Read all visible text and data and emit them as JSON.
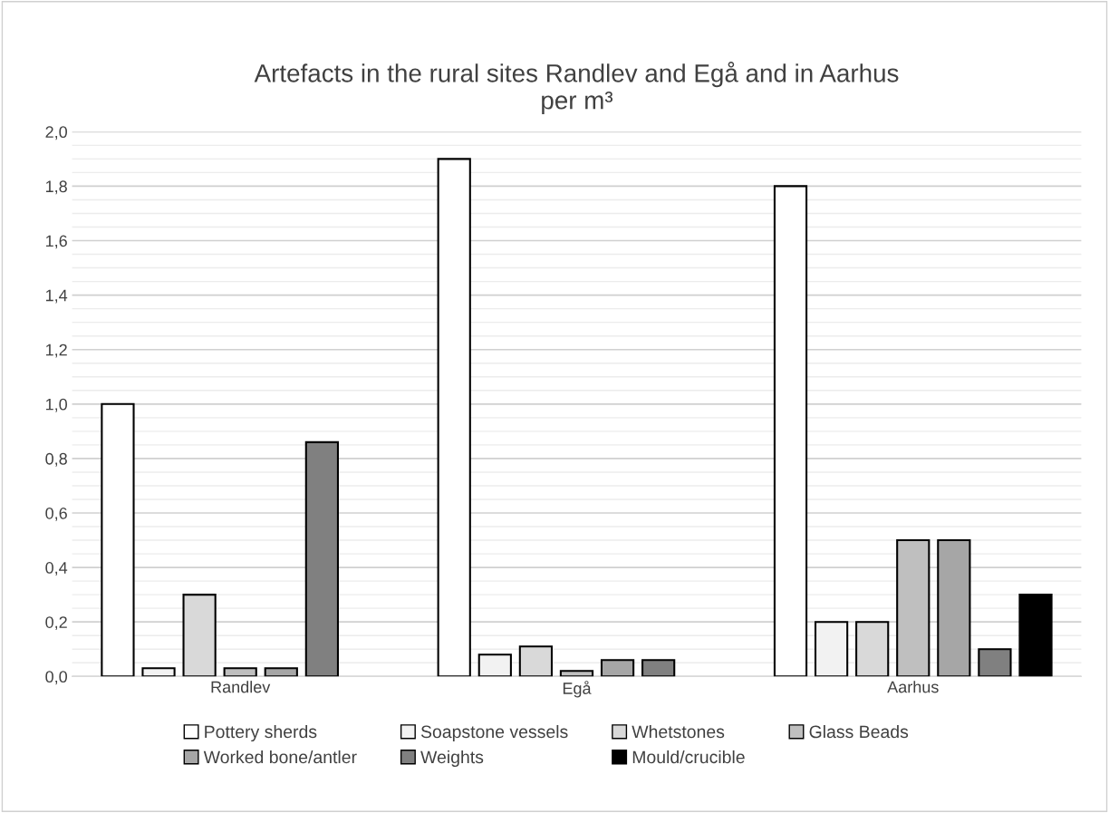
{
  "chart_data": {
    "type": "bar",
    "title": "Artefacts in the rural sites Randlev and Egå and in Aarhus\nper m³",
    "categories": [
      "Randlev",
      "Egå",
      "Aarhus"
    ],
    "series": [
      {
        "name": "Pottery sherds",
        "color": "#ffffff",
        "values": [
          1.0,
          1.9,
          1.8
        ]
      },
      {
        "name": "Soapstone vessels",
        "color": "#f2f2f2",
        "values": [
          0.03,
          0.08,
          0.2
        ]
      },
      {
        "name": "Whetstones",
        "color": "#d9d9d9",
        "values": [
          0.3,
          0.11,
          0.2
        ]
      },
      {
        "name": "Glass Beads",
        "color": "#bfbfbf",
        "values": [
          0.03,
          0.02,
          0.5
        ]
      },
      {
        "name": "Worked bone/antler",
        "color": "#a6a6a6",
        "values": [
          0.03,
          0.06,
          0.5
        ]
      },
      {
        "name": "Weights",
        "color": "#808080",
        "values": [
          0.86,
          0.06,
          0.1
        ]
      },
      {
        "name": "Mould/crucible",
        "color": "#000000",
        "values": [
          null,
          null,
          0.3
        ]
      }
    ],
    "ylim": [
      0,
      2.0
    ],
    "yticks": [
      {
        "value": 0,
        "label": "0,0"
      },
      {
        "value": 0.05,
        "label": null
      },
      {
        "value": 0.1,
        "label": null
      },
      {
        "value": 0.15,
        "label": null
      },
      {
        "value": 0.2,
        "label": "0,2"
      },
      {
        "value": 0.25,
        "label": null
      },
      {
        "value": 0.3,
        "label": null
      },
      {
        "value": 0.35,
        "label": null
      },
      {
        "value": 0.4,
        "label": "0,4"
      },
      {
        "value": 0.45,
        "label": null
      },
      {
        "value": 0.5,
        "label": null
      },
      {
        "value": 0.55,
        "label": null
      },
      {
        "value": 0.6,
        "label": "0,6"
      },
      {
        "value": 0.65,
        "label": null
      },
      {
        "value": 0.7,
        "label": null
      },
      {
        "value": 0.75,
        "label": null
      },
      {
        "value": 0.8,
        "label": "0,8"
      },
      {
        "value": 0.85,
        "label": null
      },
      {
        "value": 0.9,
        "label": null
      },
      {
        "value": 0.95,
        "label": null
      },
      {
        "value": 1.0,
        "label": "1,0"
      },
      {
        "value": 1.05,
        "label": null
      },
      {
        "value": 1.1,
        "label": null
      },
      {
        "value": 1.15,
        "label": null
      },
      {
        "value": 1.2,
        "label": "1,2"
      },
      {
        "value": 1.25,
        "label": null
      },
      {
        "value": 1.3,
        "label": null
      },
      {
        "value": 1.35,
        "label": null
      },
      {
        "value": 1.4,
        "label": "1,4"
      },
      {
        "value": 1.45,
        "label": null
      },
      {
        "value": 1.5,
        "label": null
      },
      {
        "value": 1.55,
        "label": null
      },
      {
        "value": 1.6,
        "label": "1,6"
      },
      {
        "value": 1.65,
        "label": null
      },
      {
        "value": 1.7,
        "label": null
      },
      {
        "value": 1.75,
        "label": null
      },
      {
        "value": 1.8,
        "label": "1,8"
      },
      {
        "value": 1.85,
        "label": null
      },
      {
        "value": 1.9,
        "label": null
      },
      {
        "value": 1.95,
        "label": null
      },
      {
        "value": 2.0,
        "label": "2,0"
      }
    ],
    "grid": "y",
    "legend": "bottom"
  }
}
